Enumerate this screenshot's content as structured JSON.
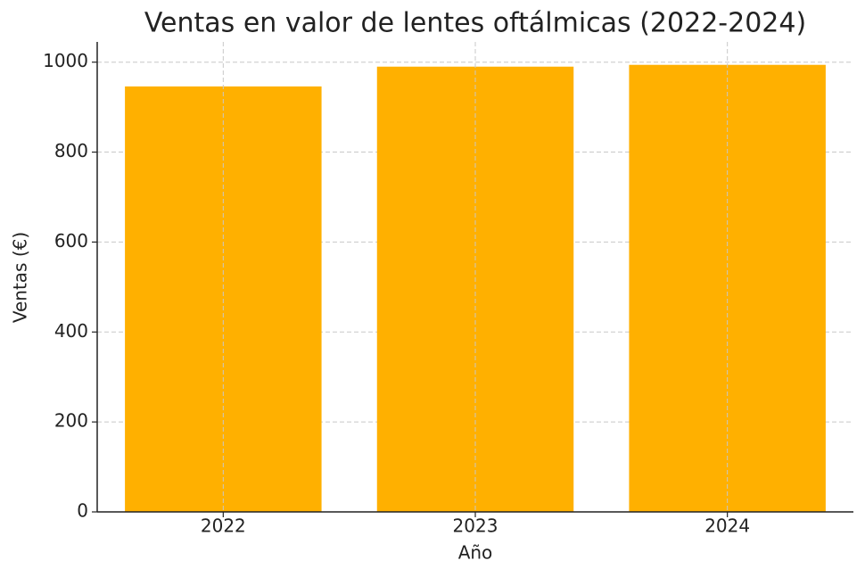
{
  "chart_data": {
    "type": "bar",
    "title": "Ventas en valor de lentes oftálmicas (2022-2024)",
    "x_label": "Año",
    "y_label": "Ventas (€)",
    "categories": [
      "2022",
      "2023",
      "2024"
    ],
    "values": [
      946,
      990,
      994
    ],
    "color": "#ffb000",
    "ylim": [
      0,
      1045
    ],
    "yticks": [
      0,
      200,
      400,
      600,
      800,
      1000
    ],
    "grid": true
  }
}
